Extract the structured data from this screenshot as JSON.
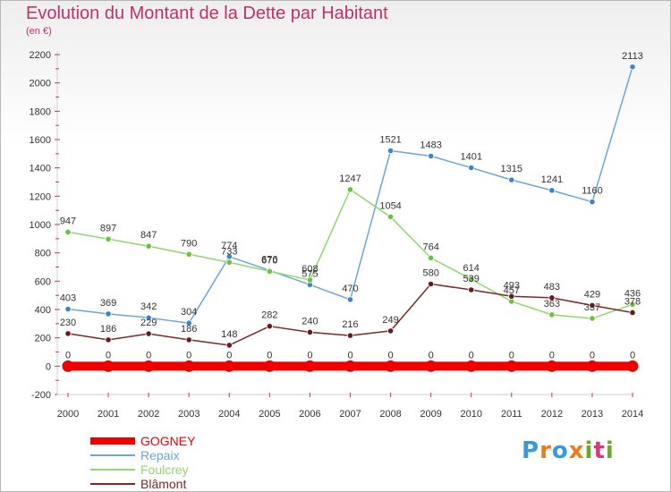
{
  "title": "Evolution du Montant de la Dette par Habitant",
  "unit_label": "(en €)",
  "logo": {
    "text": "Proxiti",
    "letters": [
      "P",
      "r",
      "o",
      "x",
      "i",
      "t",
      "i"
    ],
    "colors": [
      "#3a9ad9",
      "#e87d1e",
      "#3a9ad9",
      "#e87d1e",
      "#6aaa2a",
      "#d43b7a",
      "#6aaa2a"
    ]
  },
  "chart_data": {
    "type": "line",
    "title": "Evolution du Montant de la Dette par Habitant",
    "ylabel": "(en €)",
    "xlabel": "",
    "x": [
      2000,
      2001,
      2002,
      2003,
      2004,
      2005,
      2006,
      2007,
      2008,
      2009,
      2010,
      2011,
      2012,
      2013,
      2014
    ],
    "ylim": [
      -200,
      2200
    ],
    "yticks": [
      -200,
      0,
      200,
      400,
      600,
      800,
      1000,
      1200,
      1400,
      1600,
      1800,
      2000,
      2200
    ],
    "grid": false,
    "legend_position": "bottom-left",
    "series": [
      {
        "name": "GOGNEY",
        "color": "#ee0000",
        "thick": true,
        "values": [
          0,
          0,
          0,
          0,
          0,
          0,
          0,
          0,
          0,
          0,
          0,
          0,
          0,
          0,
          0
        ],
        "labels": [
          "0",
          "0",
          "0",
          "0",
          "0",
          "0",
          "0",
          "0",
          "0",
          "0",
          "0",
          "0",
          "0",
          "0",
          "0"
        ]
      },
      {
        "name": "Repaix",
        "color": "#6aa7d8",
        "marker": "#3a86c8",
        "thick": false,
        "values": [
          403,
          369,
          342,
          304,
          774,
          676,
          575,
          470,
          1521,
          1483,
          1401,
          1315,
          1241,
          1160,
          2113
        ],
        "labels": [
          "403",
          "369",
          "342",
          "304",
          "774",
          "676",
          "575",
          "470",
          "1521",
          "1483",
          "1401",
          "1315",
          "1241",
          "1160",
          "2113"
        ]
      },
      {
        "name": "Foulcrey",
        "color": "#8fd86a",
        "marker": "#6cc23a",
        "thick": false,
        "values": [
          947,
          897,
          847,
          790,
          733,
          670,
          608,
          1247,
          1054,
          764,
          614,
          457,
          363,
          337,
          436
        ],
        "labels": [
          "947",
          "897",
          "847",
          "790",
          "733",
          "670",
          "608",
          "1247",
          "1054",
          "764",
          "614",
          "457",
          "363",
          "337",
          "436"
        ]
      },
      {
        "name": "Blâmont",
        "color": "#7a2a2a",
        "marker": "#6a1a1a",
        "thick": false,
        "values": [
          230,
          186,
          229,
          186,
          148,
          282,
          240,
          216,
          249,
          580,
          539,
          493,
          483,
          429,
          378
        ],
        "labels": [
          "230",
          "186",
          "229",
          "186",
          "148",
          "282",
          "240",
          "216",
          "249",
          "580",
          "539",
          "493",
          "483",
          "429",
          "378"
        ]
      }
    ]
  }
}
